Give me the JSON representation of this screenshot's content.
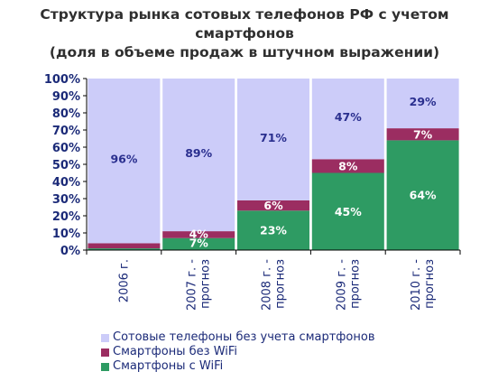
{
  "title": {
    "line1": "Структура рынка сотовых телефонов РФ с учетом смартфонов",
    "line2": "(доля в объеме продаж в штучном выражении)"
  },
  "colors": {
    "regular": "#ccccf9",
    "smart_no_wifi": "#9b2d61",
    "smart_wifi": "#2e9b63",
    "label_dark": "#2a2f8f",
    "label_light": "#ffffff",
    "axis": "#000000",
    "tick_text": "#1b2a78"
  },
  "chart_data": {
    "type": "bar",
    "stacked": true,
    "categories": [
      "2006 г.",
      "2007 г. - прогноз",
      "2008 г. - прогноз",
      "2009 г. - прогноз",
      "2010 г. - прогноз"
    ],
    "series": [
      {
        "name": "Смартфоны с WiFi",
        "color_key": "smart_wifi",
        "values": [
          1,
          7,
          23,
          45,
          64
        ],
        "labels": [
          "",
          "7%",
          "23%",
          "45%",
          "64%"
        ]
      },
      {
        "name": "Смартфоны без WiFi",
        "color_key": "smart_no_wifi",
        "values": [
          3,
          4,
          6,
          8,
          7
        ],
        "labels": [
          "",
          "4%",
          "6%",
          "8%",
          "7%"
        ]
      },
      {
        "name": "Сотовые телефоны без учета смартфонов",
        "color_key": "regular",
        "values": [
          96,
          89,
          71,
          47,
          29
        ],
        "labels": [
          "96%",
          "89%",
          "71%",
          "47%",
          "29%"
        ]
      }
    ],
    "yticks": [
      "0%",
      "10%",
      "20%",
      "30%",
      "40%",
      "50%",
      "60%",
      "70%",
      "80%",
      "90%",
      "100%"
    ],
    "ylim": [
      0,
      100
    ],
    "legend_position": "bottom"
  }
}
